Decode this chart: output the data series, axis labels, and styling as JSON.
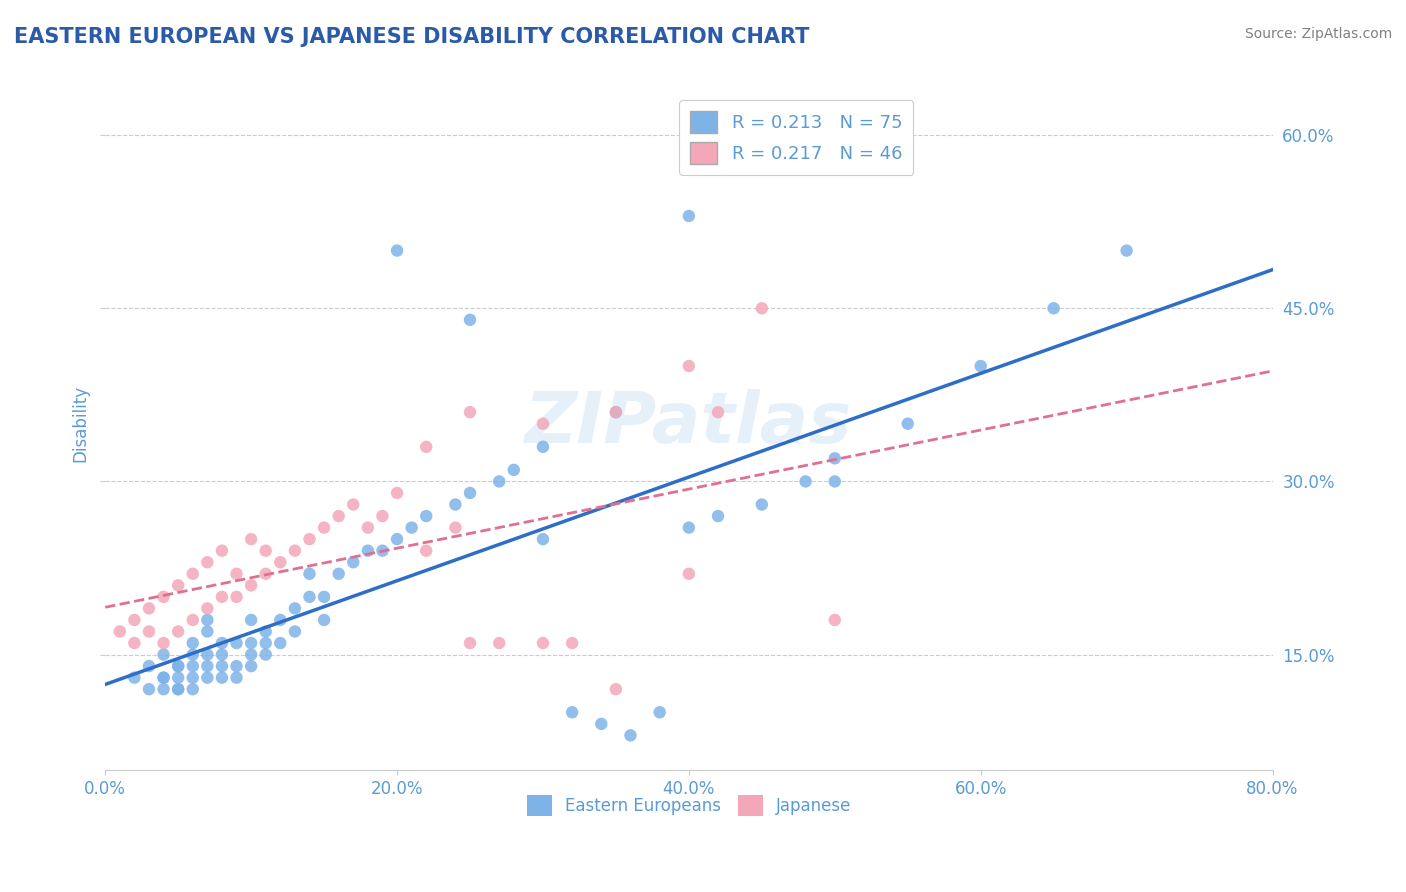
{
  "title": "EASTERN EUROPEAN VS JAPANESE DISABILITY CORRELATION CHART",
  "source": "Source: ZipAtlas.com",
  "ylabel": "Disability",
  "xlim": [
    0.0,
    0.8
  ],
  "ylim": [
    0.05,
    0.65
  ],
  "yticks": [
    0.15,
    0.3,
    0.45,
    0.6
  ],
  "ytick_labels": [
    "15.0%",
    "30.0%",
    "45.0%",
    "60.0%"
  ],
  "xticks": [
    0.0,
    0.2,
    0.4,
    0.6,
    0.8
  ],
  "xtick_labels": [
    "0.0%",
    "20.0%",
    "40.0%",
    "60.0%",
    "80.0%"
  ],
  "blue_color": "#7EB3E8",
  "pink_color": "#F4A7B9",
  "blue_line_color": "#2E6EC7",
  "pink_line_color": "#E07090",
  "legend_r1": "R = 0.213",
  "legend_n1": "N = 75",
  "legend_r2": "R = 0.217",
  "legend_n2": "N = 46",
  "legend_label1": "Eastern Europeans",
  "legend_label2": "Japanese",
  "title_color": "#2B5BA8",
  "axis_color": "#5B9BD5",
  "blue_scatter_x": [
    0.02,
    0.03,
    0.03,
    0.04,
    0.04,
    0.04,
    0.04,
    0.05,
    0.05,
    0.05,
    0.05,
    0.05,
    0.06,
    0.06,
    0.06,
    0.06,
    0.06,
    0.07,
    0.07,
    0.07,
    0.07,
    0.07,
    0.08,
    0.08,
    0.08,
    0.08,
    0.09,
    0.09,
    0.09,
    0.1,
    0.1,
    0.1,
    0.1,
    0.11,
    0.11,
    0.11,
    0.12,
    0.12,
    0.13,
    0.13,
    0.14,
    0.14,
    0.15,
    0.15,
    0.16,
    0.17,
    0.18,
    0.19,
    0.2,
    0.21,
    0.22,
    0.24,
    0.25,
    0.27,
    0.28,
    0.3,
    0.32,
    0.34,
    0.36,
    0.38,
    0.4,
    0.42,
    0.45,
    0.48,
    0.5,
    0.35,
    0.2,
    0.25,
    0.3,
    0.4,
    0.5,
    0.55,
    0.6,
    0.65,
    0.7
  ],
  "blue_scatter_y": [
    0.13,
    0.12,
    0.14,
    0.12,
    0.13,
    0.13,
    0.15,
    0.12,
    0.13,
    0.14,
    0.14,
    0.12,
    0.12,
    0.13,
    0.14,
    0.15,
    0.16,
    0.13,
    0.14,
    0.15,
    0.17,
    0.18,
    0.13,
    0.14,
    0.15,
    0.16,
    0.13,
    0.14,
    0.16,
    0.14,
    0.15,
    0.16,
    0.18,
    0.15,
    0.16,
    0.17,
    0.16,
    0.18,
    0.17,
    0.19,
    0.2,
    0.22,
    0.18,
    0.2,
    0.22,
    0.23,
    0.24,
    0.24,
    0.25,
    0.26,
    0.27,
    0.28,
    0.29,
    0.3,
    0.31,
    0.25,
    0.1,
    0.09,
    0.08,
    0.1,
    0.26,
    0.27,
    0.28,
    0.3,
    0.32,
    0.36,
    0.5,
    0.44,
    0.33,
    0.53,
    0.3,
    0.35,
    0.4,
    0.45,
    0.5
  ],
  "pink_scatter_x": [
    0.01,
    0.02,
    0.02,
    0.03,
    0.03,
    0.04,
    0.04,
    0.05,
    0.05,
    0.06,
    0.06,
    0.07,
    0.07,
    0.08,
    0.08,
    0.09,
    0.09,
    0.1,
    0.1,
    0.11,
    0.11,
    0.12,
    0.13,
    0.14,
    0.15,
    0.16,
    0.17,
    0.18,
    0.19,
    0.2,
    0.22,
    0.24,
    0.25,
    0.27,
    0.3,
    0.32,
    0.35,
    0.4,
    0.42,
    0.45,
    0.5,
    0.22,
    0.25,
    0.3,
    0.35,
    0.4
  ],
  "pink_scatter_y": [
    0.17,
    0.16,
    0.18,
    0.17,
    0.19,
    0.16,
    0.2,
    0.17,
    0.21,
    0.18,
    0.22,
    0.19,
    0.23,
    0.2,
    0.24,
    0.2,
    0.22,
    0.21,
    0.25,
    0.22,
    0.24,
    0.23,
    0.24,
    0.25,
    0.26,
    0.27,
    0.28,
    0.26,
    0.27,
    0.29,
    0.24,
    0.26,
    0.16,
    0.16,
    0.16,
    0.16,
    0.12,
    0.4,
    0.36,
    0.45,
    0.18,
    0.33,
    0.36,
    0.35,
    0.36,
    0.22
  ]
}
